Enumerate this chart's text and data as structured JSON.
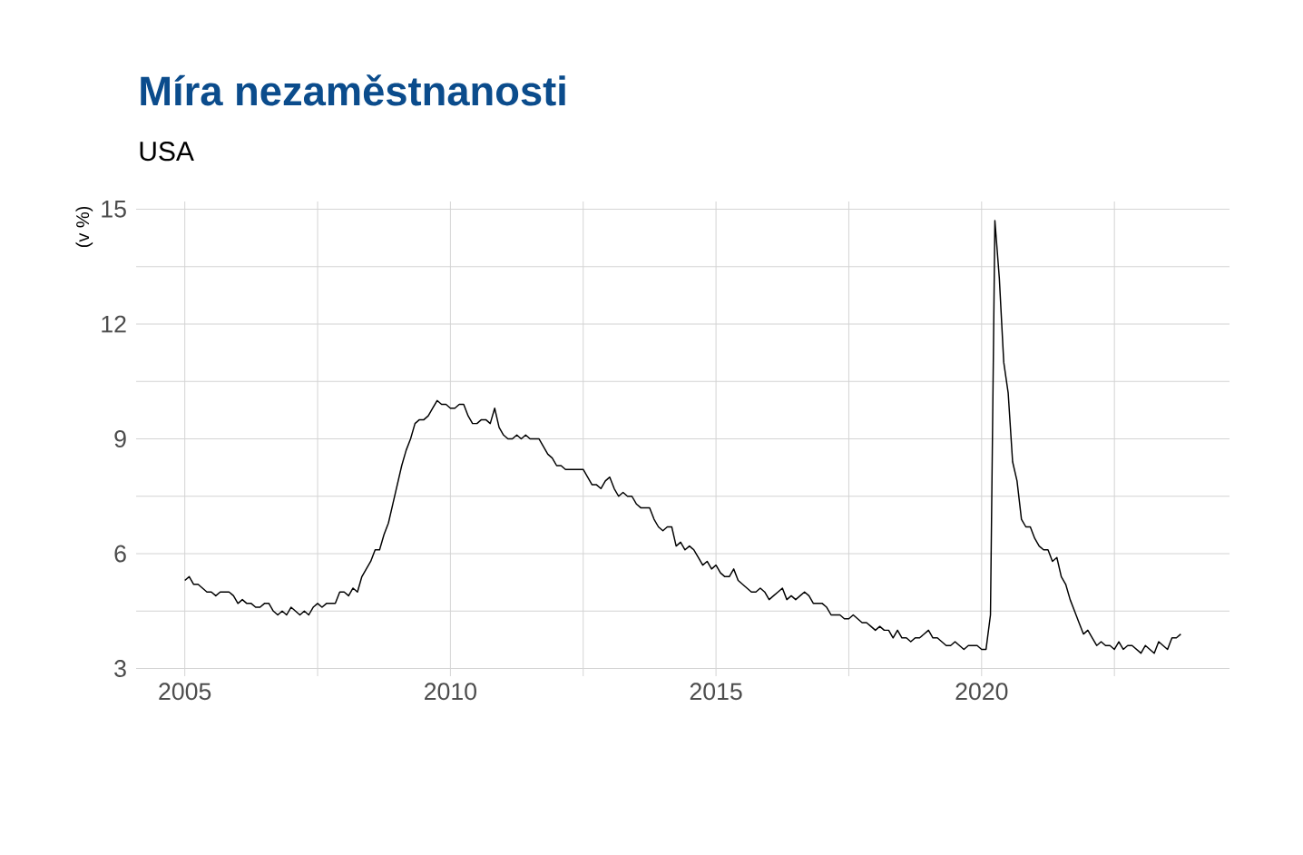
{
  "chart_data": {
    "type": "line",
    "title": "Míra nezaměstnanosti",
    "subtitle": "USA",
    "ylabel": "(v %)",
    "x": [
      "2005-01",
      "2005-02",
      "2005-03",
      "2005-04",
      "2005-05",
      "2005-06",
      "2005-07",
      "2005-08",
      "2005-09",
      "2005-10",
      "2005-11",
      "2005-12",
      "2006-01",
      "2006-02",
      "2006-03",
      "2006-04",
      "2006-05",
      "2006-06",
      "2006-07",
      "2006-08",
      "2006-09",
      "2006-10",
      "2006-11",
      "2006-12",
      "2007-01",
      "2007-02",
      "2007-03",
      "2007-04",
      "2007-05",
      "2007-06",
      "2007-07",
      "2007-08",
      "2007-09",
      "2007-10",
      "2007-11",
      "2007-12",
      "2008-01",
      "2008-02",
      "2008-03",
      "2008-04",
      "2008-05",
      "2008-06",
      "2008-07",
      "2008-08",
      "2008-09",
      "2008-10",
      "2008-11",
      "2008-12",
      "2009-01",
      "2009-02",
      "2009-03",
      "2009-04",
      "2009-05",
      "2009-06",
      "2009-07",
      "2009-08",
      "2009-09",
      "2009-10",
      "2009-11",
      "2009-12",
      "2010-01",
      "2010-02",
      "2010-03",
      "2010-04",
      "2010-05",
      "2010-06",
      "2010-07",
      "2010-08",
      "2010-09",
      "2010-10",
      "2010-11",
      "2010-12",
      "2011-01",
      "2011-02",
      "2011-03",
      "2011-04",
      "2011-05",
      "2011-06",
      "2011-07",
      "2011-08",
      "2011-09",
      "2011-10",
      "2011-11",
      "2011-12",
      "2012-01",
      "2012-02",
      "2012-03",
      "2012-04",
      "2012-05",
      "2012-06",
      "2012-07",
      "2012-08",
      "2012-09",
      "2012-10",
      "2012-11",
      "2012-12",
      "2013-01",
      "2013-02",
      "2013-03",
      "2013-04",
      "2013-05",
      "2013-06",
      "2013-07",
      "2013-08",
      "2013-09",
      "2013-10",
      "2013-11",
      "2013-12",
      "2014-01",
      "2014-02",
      "2014-03",
      "2014-04",
      "2014-05",
      "2014-06",
      "2014-07",
      "2014-08",
      "2014-09",
      "2014-10",
      "2014-11",
      "2014-12",
      "2015-01",
      "2015-02",
      "2015-03",
      "2015-04",
      "2015-05",
      "2015-06",
      "2015-07",
      "2015-08",
      "2015-09",
      "2015-10",
      "2015-11",
      "2015-12",
      "2016-01",
      "2016-02",
      "2016-03",
      "2016-04",
      "2016-05",
      "2016-06",
      "2016-07",
      "2016-08",
      "2016-09",
      "2016-10",
      "2016-11",
      "2016-12",
      "2017-01",
      "2017-02",
      "2017-03",
      "2017-04",
      "2017-05",
      "2017-06",
      "2017-07",
      "2017-08",
      "2017-09",
      "2017-10",
      "2017-11",
      "2017-12",
      "2018-01",
      "2018-02",
      "2018-03",
      "2018-04",
      "2018-05",
      "2018-06",
      "2018-07",
      "2018-08",
      "2018-09",
      "2018-10",
      "2018-11",
      "2018-12",
      "2019-01",
      "2019-02",
      "2019-03",
      "2019-04",
      "2019-05",
      "2019-06",
      "2019-07",
      "2019-08",
      "2019-09",
      "2019-10",
      "2019-11",
      "2019-12",
      "2020-01",
      "2020-02",
      "2020-03",
      "2020-04",
      "2020-05",
      "2020-06",
      "2020-07",
      "2020-08",
      "2020-09",
      "2020-10",
      "2020-11",
      "2020-12",
      "2021-01",
      "2021-02",
      "2021-03",
      "2021-04",
      "2021-05",
      "2021-06",
      "2021-07",
      "2021-08",
      "2021-09",
      "2021-10",
      "2021-11",
      "2021-12",
      "2022-01",
      "2022-02",
      "2022-03",
      "2022-04",
      "2022-05",
      "2022-06",
      "2022-07",
      "2022-08",
      "2022-09",
      "2022-10",
      "2022-11",
      "2022-12",
      "2023-01",
      "2023-02",
      "2023-03",
      "2023-04",
      "2023-05",
      "2023-06",
      "2023-07",
      "2023-08",
      "2023-09",
      "2023-10"
    ],
    "series": [
      {
        "color": "#000000",
        "values": [
          5.3,
          5.4,
          5.2,
          5.2,
          5.1,
          5.0,
          5.0,
          4.9,
          5.0,
          5.0,
          5.0,
          4.9,
          4.7,
          4.8,
          4.7,
          4.7,
          4.6,
          4.6,
          4.7,
          4.7,
          4.5,
          4.4,
          4.5,
          4.4,
          4.6,
          4.5,
          4.4,
          4.5,
          4.4,
          4.6,
          4.7,
          4.6,
          4.7,
          4.7,
          4.7,
          5.0,
          5.0,
          4.9,
          5.1,
          5.0,
          5.4,
          5.6,
          5.8,
          6.1,
          6.1,
          6.5,
          6.8,
          7.3,
          7.8,
          8.3,
          8.7,
          9.0,
          9.4,
          9.5,
          9.5,
          9.6,
          9.8,
          10.0,
          9.9,
          9.9,
          9.8,
          9.8,
          9.9,
          9.9,
          9.6,
          9.4,
          9.4,
          9.5,
          9.5,
          9.4,
          9.8,
          9.3,
          9.1,
          9.0,
          9.0,
          9.1,
          9.0,
          9.1,
          9.0,
          9.0,
          9.0,
          8.8,
          8.6,
          8.5,
          8.3,
          8.3,
          8.2,
          8.2,
          8.2,
          8.2,
          8.2,
          8.0,
          7.8,
          7.8,
          7.7,
          7.9,
          8.0,
          7.7,
          7.5,
          7.6,
          7.5,
          7.5,
          7.3,
          7.2,
          7.2,
          7.2,
          6.9,
          6.7,
          6.6,
          6.7,
          6.7,
          6.2,
          6.3,
          6.1,
          6.2,
          6.1,
          5.9,
          5.7,
          5.8,
          5.6,
          5.7,
          5.5,
          5.4,
          5.4,
          5.6,
          5.3,
          5.2,
          5.1,
          5.0,
          5.0,
          5.1,
          5.0,
          4.8,
          4.9,
          5.0,
          5.1,
          4.8,
          4.9,
          4.8,
          4.9,
          5.0,
          4.9,
          4.7,
          4.7,
          4.7,
          4.6,
          4.4,
          4.4,
          4.4,
          4.3,
          4.3,
          4.4,
          4.3,
          4.2,
          4.2,
          4.1,
          4.0,
          4.1,
          4.0,
          4.0,
          3.8,
          4.0,
          3.8,
          3.8,
          3.7,
          3.8,
          3.8,
          3.9,
          4.0,
          3.8,
          3.8,
          3.7,
          3.6,
          3.6,
          3.7,
          3.6,
          3.5,
          3.6,
          3.6,
          3.6,
          3.5,
          3.5,
          4.4,
          14.7,
          13.2,
          11.0,
          10.2,
          8.4,
          7.9,
          6.9,
          6.7,
          6.7,
          6.4,
          6.2,
          6.1,
          6.1,
          5.8,
          5.9,
          5.4,
          5.2,
          4.8,
          4.5,
          4.2,
          3.9,
          4.0,
          3.8,
          3.6,
          3.7,
          3.6,
          3.6,
          3.5,
          3.7,
          3.5,
          3.6,
          3.6,
          3.5,
          3.4,
          3.6,
          3.5,
          3.4,
          3.7,
          3.6,
          3.5,
          3.8,
          3.8,
          3.9
        ]
      }
    ],
    "xlim": [
      "2004-02",
      "2024-09"
    ],
    "ylim": [
      2.8,
      15.2
    ],
    "xticks": [
      "2005",
      {
        "value": "2007-07",
        "label": null
      },
      "2010",
      {
        "value": "2012-07",
        "label": null
      },
      "2015",
      {
        "value": "2017-07",
        "label": null
      },
      "2020",
      {
        "value": "2022-07",
        "label": null
      }
    ],
    "yticks": [
      3,
      {
        "value": 4.5,
        "label": null
      },
      6,
      {
        "value": 7.5,
        "label": null
      },
      9,
      {
        "value": 10.5,
        "label": null
      },
      12,
      {
        "value": 13.5,
        "label": null
      },
      15
    ],
    "grid": true,
    "marker": "none",
    "line_style": "solid"
  }
}
